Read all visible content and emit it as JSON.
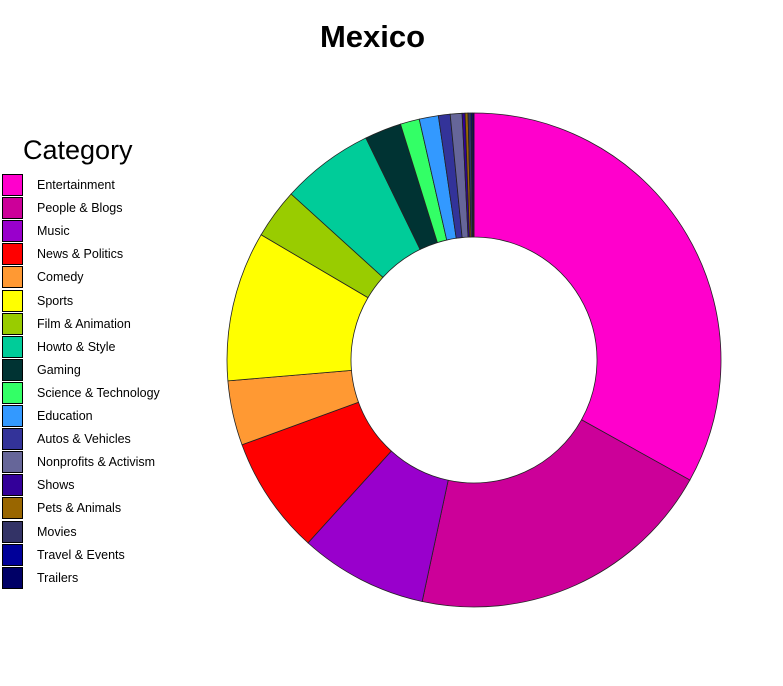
{
  "chart_data": {
    "type": "pie",
    "subtype": "donut",
    "title": "Mexico",
    "legend_title": "Category",
    "legend_position": "left",
    "start_angle_deg": 0,
    "direction": "clockwise",
    "series": [
      {
        "name": "Entertainment",
        "value": 34.4,
        "color": "#FF00CC"
      },
      {
        "name": "People & Blogs",
        "value": 21.1,
        "color": "#CC0099"
      },
      {
        "name": "Music",
        "value": 8.7,
        "color": "#9900CC"
      },
      {
        "name": "News & Politics",
        "value": 8.0,
        "color": "#FF0000"
      },
      {
        "name": "Comedy",
        "value": 4.4,
        "color": "#FF9933"
      },
      {
        "name": "Sports",
        "value": 10.2,
        "color": "#FFFF00"
      },
      {
        "name": "Film & Animation",
        "value": 3.4,
        "color": "#99CC00"
      },
      {
        "name": "Howto & Style",
        "value": 6.3,
        "color": "#00CC99"
      },
      {
        "name": "Gaming",
        "value": 2.5,
        "color": "#003333"
      },
      {
        "name": "Science & Technology",
        "value": 1.3,
        "color": "#33FF66"
      },
      {
        "name": "Education",
        "value": 1.3,
        "color": "#3399FF"
      },
      {
        "name": "Autos & Vehicles",
        "value": 0.8,
        "color": "#333399"
      },
      {
        "name": "Nonprofits & Activism",
        "value": 0.8,
        "color": "#666699"
      },
      {
        "name": "Shows",
        "value": 0.2,
        "color": "#330099"
      },
      {
        "name": "Pets & Animals",
        "value": 0.2,
        "color": "#996600"
      },
      {
        "name": "Movies",
        "value": 0.2,
        "color": "#333366"
      },
      {
        "name": "Travel & Events",
        "value": 0.1,
        "color": "#000099"
      },
      {
        "name": "Trailers",
        "value": 0.1,
        "color": "#000066"
      }
    ]
  }
}
